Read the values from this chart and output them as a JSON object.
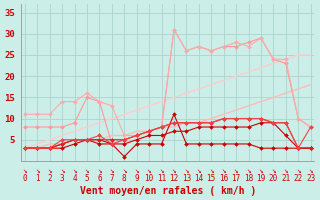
{
  "xlabel": "Vent moyen/en rafales ( km/h )",
  "background_color": "#cceee8",
  "grid_color": "#aad4ce",
  "x_ticks": [
    0,
    1,
    2,
    3,
    4,
    5,
    6,
    7,
    8,
    9,
    10,
    11,
    12,
    13,
    14,
    15,
    16,
    17,
    18,
    19,
    20,
    21,
    22,
    23
  ],
  "ylim": [
    0,
    37
  ],
  "xlim": [
    -0.3,
    23.3
  ],
  "yticks": [
    0,
    5,
    10,
    15,
    20,
    25,
    30,
    35
  ],
  "series": [
    {
      "x": [
        0,
        1,
        2,
        3,
        4,
        5,
        6,
        7,
        8,
        9,
        10,
        11,
        12,
        13,
        14,
        15,
        16,
        17,
        18,
        19,
        20,
        21,
        22,
        23
      ],
      "y": [
        3,
        3,
        3,
        3,
        4,
        5,
        4,
        4,
        1,
        4,
        4,
        4,
        11,
        4,
        4,
        4,
        4,
        4,
        4,
        3,
        3,
        3,
        3,
        3
      ],
      "color": "#cc0000",
      "marker": "D",
      "markersize": 2.0,
      "linewidth": 0.8,
      "zorder": 5
    },
    {
      "x": [
        0,
        1,
        2,
        3,
        4,
        5,
        6,
        7,
        8,
        9,
        10,
        11,
        12,
        13,
        14,
        15,
        16,
        17,
        18,
        19,
        20,
        21,
        22,
        23
      ],
      "y": [
        3,
        3,
        3,
        4,
        5,
        5,
        5,
        4,
        4,
        5,
        6,
        6,
        7,
        7,
        8,
        8,
        8,
        8,
        8,
        9,
        9,
        6,
        3,
        3
      ],
      "color": "#cc0000",
      "marker": "D",
      "markersize": 2.0,
      "linewidth": 0.8,
      "zorder": 5
    },
    {
      "x": [
        0,
        1,
        2,
        3,
        4,
        5,
        6,
        7,
        8,
        9,
        10,
        11,
        12,
        13,
        14,
        15,
        16,
        17,
        18,
        19,
        20,
        21,
        22,
        23
      ],
      "y": [
        3,
        3,
        3,
        4,
        5,
        5,
        5,
        5,
        5,
        6,
        7,
        8,
        9,
        9,
        9,
        9,
        10,
        10,
        10,
        10,
        9,
        9,
        3,
        3
      ],
      "color": "#dd2222",
      "marker": "D",
      "markersize": 2.0,
      "linewidth": 0.8,
      "zorder": 5
    },
    {
      "x": [
        0,
        1,
        2,
        3,
        4,
        5,
        6,
        7,
        8,
        9,
        10,
        11,
        12,
        13,
        14,
        15,
        16,
        17,
        18,
        19,
        20,
        21,
        22,
        23
      ],
      "y": [
        8,
        8,
        8,
        8,
        9,
        15,
        14,
        4,
        5,
        6,
        7,
        8,
        31,
        26,
        27,
        26,
        27,
        27,
        28,
        29,
        24,
        23,
        10,
        8
      ],
      "color": "#ff9999",
      "marker": "D",
      "markersize": 2.0,
      "linewidth": 0.8,
      "zorder": 4
    },
    {
      "x": [
        0,
        1,
        2,
        3,
        4,
        5,
        6,
        7,
        8,
        9,
        10,
        11,
        12,
        13,
        14,
        15,
        16,
        17,
        18,
        19,
        20,
        21,
        22,
        23
      ],
      "y": [
        11,
        11,
        11,
        14,
        14,
        16,
        14,
        13,
        6,
        6,
        7,
        8,
        31,
        26,
        27,
        26,
        27,
        28,
        27,
        29,
        24,
        24,
        10,
        8
      ],
      "color": "#ffaaaa",
      "marker": "D",
      "markersize": 2.0,
      "linewidth": 0.8,
      "zorder": 4
    },
    {
      "x": [
        0,
        1,
        2,
        3,
        4,
        5,
        6,
        7,
        8,
        9,
        10,
        11,
        12,
        13,
        14,
        15,
        16,
        17,
        18,
        19,
        20,
        21,
        22,
        23
      ],
      "y": [
        3,
        3,
        3,
        5,
        5,
        5,
        6,
        4,
        5,
        6,
        7,
        8,
        9,
        9,
        9,
        9,
        10,
        10,
        10,
        10,
        9,
        9,
        3,
        8
      ],
      "color": "#ee4444",
      "marker": "D",
      "markersize": 2.0,
      "linewidth": 0.8,
      "zorder": 5
    },
    {
      "x": [
        0,
        1,
        2,
        3,
        4,
        5,
        6,
        7,
        8,
        9,
        10,
        11,
        12,
        13,
        14,
        15,
        16,
        17,
        18,
        19,
        20,
        21,
        22,
        23
      ],
      "y": [
        3,
        3,
        4,
        4,
        5,
        5,
        5,
        6,
        6,
        7,
        7,
        8,
        8,
        9,
        9,
        10,
        11,
        12,
        13,
        14,
        15,
        16,
        17,
        18
      ],
      "color": "#ffbbbb",
      "marker": null,
      "markersize": 0,
      "linewidth": 1.0,
      "zorder": 3
    },
    {
      "x": [
        0,
        1,
        2,
        3,
        4,
        5,
        6,
        7,
        8,
        9,
        10,
        11,
        12,
        13,
        14,
        15,
        16,
        17,
        18,
        19,
        20,
        21,
        22,
        23
      ],
      "y": [
        3,
        4,
        5,
        6,
        7,
        8,
        9,
        10,
        11,
        12,
        13,
        14,
        15,
        16,
        17,
        18,
        19,
        20,
        21,
        22,
        23,
        24,
        25,
        25
      ],
      "color": "#ffcccc",
      "marker": null,
      "markersize": 0,
      "linewidth": 1.0,
      "zorder": 3
    }
  ],
  "tick_label_color": "#cc0000",
  "axis_label_color": "#cc0000",
  "tick_fontsize": 5.5,
  "label_fontsize": 7.0
}
